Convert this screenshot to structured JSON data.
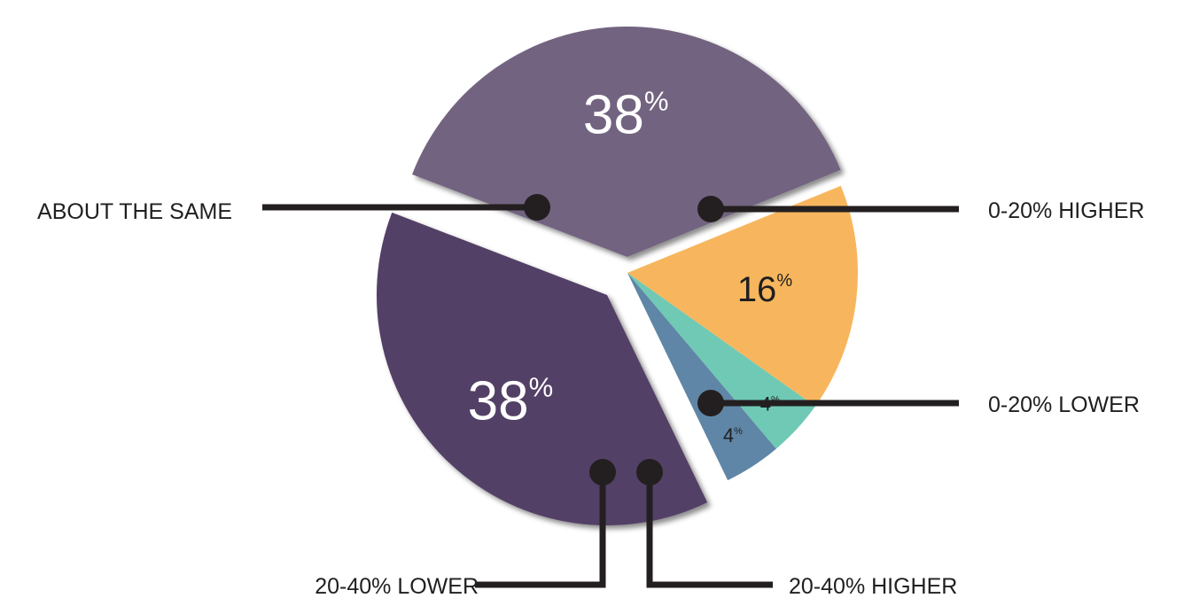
{
  "chart_data": {
    "type": "pie",
    "title": "",
    "start_angle_deg": -69,
    "slices": [
      {
        "label": "0-20% HIGHER",
        "value": 38,
        "value_text": "38",
        "color": "#726380"
      },
      {
        "label": "0-20% LOWER",
        "value": 16,
        "value_text": "16",
        "color": "#f7b65e"
      },
      {
        "label": "20-40% HIGHER",
        "value": 4,
        "value_text": "4",
        "color": "#6fc9b4"
      },
      {
        "label": "20-40% LOWER",
        "value": 4,
        "value_text": "4",
        "color": "#5f86a6"
      },
      {
        "label": "ABOUT THE SAME",
        "value": 38,
        "value_text": "38",
        "color": "#533f66"
      }
    ],
    "percent_symbol": "%",
    "value_text_color_dark": "#ffffff",
    "value_text_color_light": "#1f1f1f",
    "leader_line_color": "#231f20",
    "legend": "callout labels with leader lines"
  }
}
